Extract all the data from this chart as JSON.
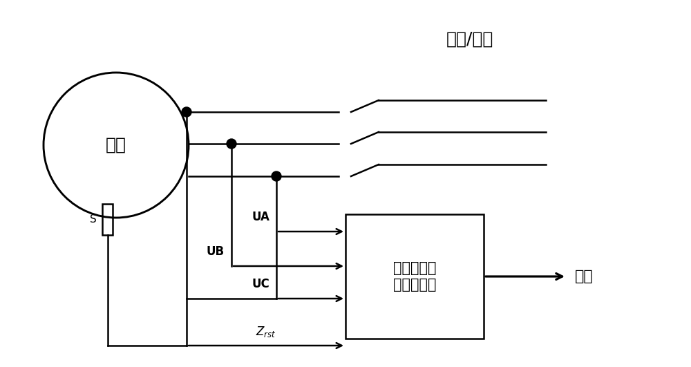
{
  "title": "接通/断开",
  "motor_label": "电机",
  "sensor_label": "S",
  "device_label": "电机旋转角\n度测量设备",
  "output_label": "输出",
  "ua_label": "UA",
  "ub_label": "UB",
  "uc_label": "UC",
  "zrst_label": "Z_rst",
  "bg_color": "#ffffff",
  "line_color": "#000000",
  "lw": 1.8
}
